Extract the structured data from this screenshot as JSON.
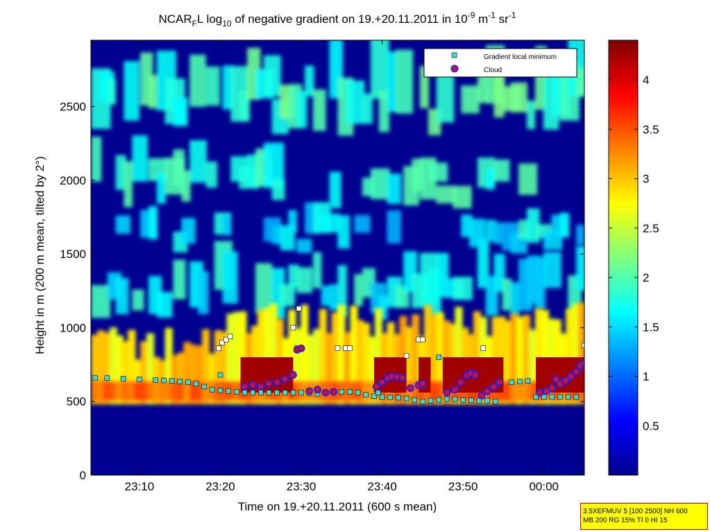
{
  "chart_data": {
    "type": "heatmap",
    "title": {
      "prefix": "NCAR",
      "sub_f": "F",
      "mid": "L log",
      "sub_10": "10",
      "mid2": " of negative gradient on 19.+20.11.2011 in 10",
      "sup1": "-9",
      "mid3": " m",
      "sup2": "-1",
      "mid4": " sr",
      "sup3": "-1"
    },
    "xlabel": "Time on 19.+20.11.2011 (600 s mean)",
    "ylabel": "Height in m (200 m mean, tilted by 2°)",
    "x_ticks": [
      "23:10",
      "23:20",
      "23:30",
      "23:40",
      "23:50",
      "00:00"
    ],
    "x_tick_minutes": [
      10,
      20,
      30,
      40,
      50,
      60
    ],
    "xlim_minutes": [
      4,
      65
    ],
    "y_ticks": [
      "0",
      "500",
      "1000",
      "1500",
      "2000",
      "2500"
    ],
    "ylim": [
      0,
      2950
    ],
    "colorbar": {
      "ticks": [
        "0.5",
        "1",
        "1.5",
        "2",
        "2.5",
        "3",
        "3.5",
        "4"
      ],
      "range": [
        0,
        4.4
      ],
      "colormap": "jet"
    },
    "legend": {
      "placement": "top-right",
      "entries": [
        "Gradient local minimum",
        "Cloud"
      ],
      "colors": {
        "gradient_min": "#40d8d0",
        "cloud_fill": "#e01010",
        "cloud_edge": "#2020ff"
      }
    },
    "background_color": "#000090",
    "fields": {
      "boundary_layer": {
        "value_range": [
          2.5,
          4.3
        ],
        "height_m": [
          500,
          850
        ]
      },
      "cloud_layers_m": [
        [
          1050,
          1500,
          1.7
        ],
        [
          1500,
          1800,
          1.6
        ],
        [
          1800,
          2200,
          1.9
        ],
        [
          2300,
          2850,
          1.9
        ]
      ]
    },
    "series": [
      {
        "name": "Gradient local minimum",
        "points": [
          [
            4.5,
            660
          ],
          [
            6,
            658
          ],
          [
            8,
            655
          ],
          [
            10,
            650
          ],
          [
            12,
            645
          ],
          [
            13,
            642
          ],
          [
            14,
            640
          ],
          [
            15,
            636
          ],
          [
            16,
            630
          ],
          [
            17,
            620
          ],
          [
            18,
            600
          ],
          [
            19,
            580
          ],
          [
            20,
            575
          ],
          [
            21,
            570
          ],
          [
            22,
            565
          ],
          [
            23,
            560
          ],
          [
            24,
            560
          ],
          [
            25,
            560
          ],
          [
            26,
            560
          ],
          [
            27,
            560
          ],
          [
            28,
            560
          ],
          [
            29,
            560
          ],
          [
            30,
            560
          ],
          [
            31,
            555
          ],
          [
            32,
            552
          ],
          [
            33,
            560
          ],
          [
            34,
            565
          ],
          [
            35,
            565
          ],
          [
            36,
            565
          ],
          [
            37,
            560
          ],
          [
            38,
            545
          ],
          [
            39,
            535
          ],
          [
            40,
            530
          ],
          [
            41,
            528
          ],
          [
            42,
            525
          ],
          [
            43,
            520
          ],
          [
            44,
            510
          ],
          [
            45,
            500
          ],
          [
            46,
            505
          ],
          [
            47,
            510
          ],
          [
            48,
            515
          ],
          [
            49,
            515
          ],
          [
            50,
            510
          ],
          [
            51,
            508
          ],
          [
            52,
            505
          ],
          [
            53,
            505
          ],
          [
            54,
            500
          ],
          [
            56,
            630
          ],
          [
            57,
            635
          ],
          [
            58,
            640
          ],
          [
            59,
            530
          ],
          [
            60,
            530
          ],
          [
            61,
            530
          ],
          [
            62,
            530
          ],
          [
            63,
            530
          ],
          [
            64,
            530
          ],
          [
            19.8,
            860
          ],
          [
            20.2,
            900
          ],
          [
            20.7,
            920
          ],
          [
            21.2,
            940
          ],
          [
            29.7,
            1130
          ],
          [
            29.5,
            860
          ],
          [
            34.5,
            860
          ],
          [
            35.5,
            860
          ],
          [
            36,
            860
          ],
          [
            43,
            810
          ],
          [
            44.5,
            920
          ],
          [
            45,
            920
          ],
          [
            47,
            800
          ],
          [
            52.5,
            860
          ],
          [
            65,
            880
          ],
          [
            20,
            680
          ],
          [
            29,
            1000
          ],
          [
            39.5,
            560
          ]
        ]
      },
      {
        "name": "Cloud",
        "points": [
          [
            23,
            600
          ],
          [
            24,
            610
          ],
          [
            25,
            600
          ],
          [
            26,
            620
          ],
          [
            27,
            630
          ],
          [
            28,
            650
          ],
          [
            29,
            680
          ],
          [
            29.5,
            850
          ],
          [
            30,
            860
          ],
          [
            31,
            570
          ],
          [
            32,
            580
          ],
          [
            33,
            560
          ],
          [
            34,
            565
          ],
          [
            39.3,
            600
          ],
          [
            40,
            630
          ],
          [
            40.7,
            660
          ],
          [
            41.2,
            670
          ],
          [
            41.8,
            665
          ],
          [
            42.5,
            660
          ],
          [
            43.5,
            590
          ],
          [
            44.5,
            610
          ],
          [
            45,
            620
          ],
          [
            48,
            560
          ],
          [
            49,
            580
          ],
          [
            49.7,
            630
          ],
          [
            50.5,
            680
          ],
          [
            51,
            690
          ],
          [
            51.5,
            680
          ],
          [
            52.3,
            540
          ],
          [
            53,
            570
          ],
          [
            53.8,
            600
          ],
          [
            54.5,
            630
          ],
          [
            59.5,
            560
          ],
          [
            60.3,
            570
          ],
          [
            61,
            590
          ],
          [
            61.5,
            650
          ],
          [
            62,
            620
          ],
          [
            62.7,
            640
          ],
          [
            63.3,
            670
          ],
          [
            64,
            700
          ],
          [
            64.5,
            740
          ],
          [
            65,
            760
          ]
        ]
      }
    ]
  },
  "info_box": {
    "line1": "3.5XEFMUV 5 [100 2500] NH 600",
    "line2": "MB 200 RG 15% TI 0 HI 15"
  }
}
